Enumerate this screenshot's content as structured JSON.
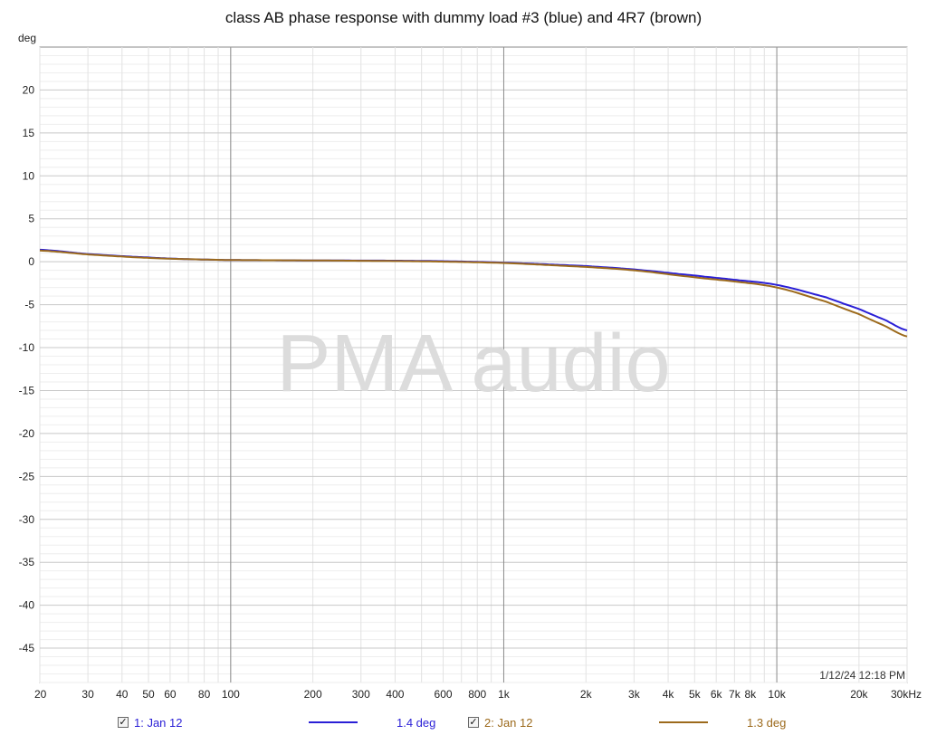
{
  "chart_data": {
    "type": "line",
    "title": "class AB phase response with dummy load #3 (blue) and 4R7 (brown)",
    "ylabel": "deg",
    "xlabel": "",
    "x_scale": "log",
    "xlim": [
      20,
      30000
    ],
    "ylim": [
      -49,
      25
    ],
    "grid": true,
    "y_ticks": [
      20,
      15,
      10,
      5,
      0,
      -5,
      -10,
      -15,
      -20,
      -25,
      -30,
      -35,
      -40,
      -45
    ],
    "y_tick_labels": [
      "20",
      "15",
      "10",
      "5",
      "0",
      "-5",
      "-10",
      "-15",
      "-20",
      "-25",
      "-30",
      "-35",
      "-40",
      "-45"
    ],
    "x_ticks": [
      20,
      30,
      40,
      50,
      60,
      80,
      100,
      200,
      300,
      400,
      600,
      800,
      1000,
      2000,
      3000,
      4000,
      5000,
      6000,
      7000,
      8000,
      10000,
      20000,
      30000
    ],
    "x_tick_labels": [
      "20",
      "30",
      "40",
      "50",
      "60",
      "80",
      "100",
      "200",
      "300",
      "400",
      "600",
      "800",
      "1k",
      "2k",
      "3k",
      "4k",
      "5k",
      "6k",
      "7k",
      "8k",
      "10k",
      "20k",
      "30kHz"
    ],
    "watermark": "PMA audio",
    "timestamp": "1/12/24 12:18 PM",
    "series": [
      {
        "color": "#2a1fd6",
        "x": [
          20,
          30,
          50,
          70,
          100,
          200,
          500,
          1000,
          2000,
          3000,
          5000,
          7000,
          10000,
          15000,
          20000,
          25000,
          30000
        ],
        "y": [
          1.4,
          0.9,
          0.5,
          0.3,
          0.2,
          0.15,
          0.1,
          -0.1,
          -0.5,
          -0.9,
          -1.6,
          -2.1,
          -2.7,
          -4.1,
          -5.5,
          -6.8,
          -8.0
        ]
      },
      {
        "color": "#9c6a1c",
        "x": [
          20,
          30,
          50,
          70,
          100,
          200,
          500,
          1000,
          2000,
          3000,
          5000,
          7000,
          10000,
          15000,
          20000,
          25000,
          30000
        ],
        "y": [
          1.3,
          0.85,
          0.45,
          0.3,
          0.2,
          0.15,
          0.05,
          -0.15,
          -0.6,
          -1.0,
          -1.8,
          -2.3,
          -3.0,
          -4.6,
          -6.1,
          -7.5,
          -8.7
        ]
      }
    ]
  },
  "legend": [
    {
      "check": "✓",
      "label": "1: Jan 12",
      "value": "1.4 deg",
      "color": "#2a1fd6"
    },
    {
      "check": "✓",
      "label": "2: Jan 12",
      "value": "1.3 deg",
      "color": "#9c6a1c"
    }
  ]
}
